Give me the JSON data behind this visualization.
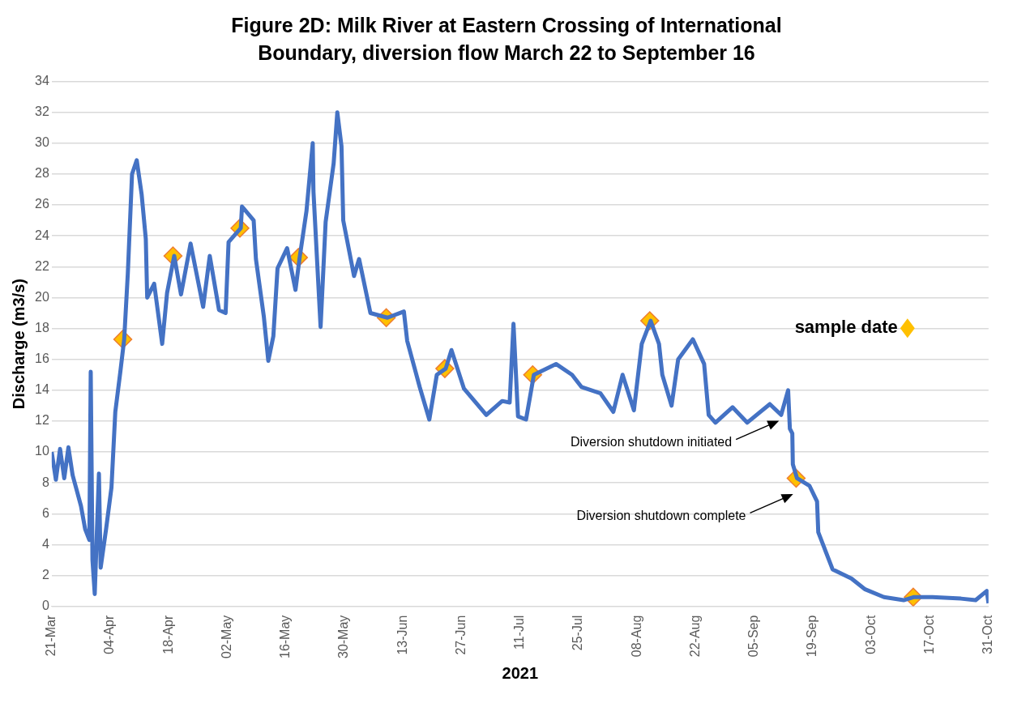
{
  "chart_data": {
    "type": "line",
    "title": "Figure 2D: Milk River at Eastern Crossing of International Boundary, diversion flow March 22 to September 16",
    "xlabel": "2021",
    "ylabel": "Discharge (m3/s)",
    "xlim": [
      "2021-03-21",
      "2021-10-31"
    ],
    "xticks": [
      {
        "value": "2021-03-21",
        "label": "21-Mar"
      },
      {
        "value": "2021-04-04",
        "label": "04-Apr"
      },
      {
        "value": "2021-04-18",
        "label": "18-Apr"
      },
      {
        "value": "2021-05-02",
        "label": "02-May"
      },
      {
        "value": "2021-05-16",
        "label": "16-May"
      },
      {
        "value": "2021-05-30",
        "label": "30-May"
      },
      {
        "value": "2021-06-13",
        "label": "13-Jun"
      },
      {
        "value": "2021-06-27",
        "label": "27-Jun"
      },
      {
        "value": "2021-07-11",
        "label": "11-Jul"
      },
      {
        "value": "2021-07-25",
        "label": "25-Jul"
      },
      {
        "value": "2021-08-08",
        "label": "08-Aug"
      },
      {
        "value": "2021-08-22",
        "label": "22-Aug"
      },
      {
        "value": "2021-09-05",
        "label": "05-Sep"
      },
      {
        "value": "2021-09-19",
        "label": "19-Sep"
      },
      {
        "value": "2021-10-03",
        "label": "03-Oct"
      },
      {
        "value": "2021-10-17",
        "label": "17-Oct"
      },
      {
        "value": "2021-10-31",
        "label": "31-Oct"
      }
    ],
    "ylim": [
      0,
      34
    ],
    "yticks": [
      0,
      2,
      4,
      6,
      8,
      10,
      12,
      14,
      16,
      18,
      20,
      22,
      24,
      26,
      28,
      30,
      32,
      34
    ],
    "grid": "y",
    "legend": "top right",
    "annotations": [
      "Diversion shutdown initiated",
      "Diversion shutdown complete"
    ],
    "series": [
      {
        "color": "#4472c4",
        "marker": "none",
        "x": [
          "2021-03-21",
          "2021-03-22",
          "2021-03-23",
          "2021-03-24",
          "2021-03-25",
          "2021-03-26",
          "2021-03-27",
          "2021-03-28",
          "2021-03-29",
          "2021-03-30T00:00",
          "2021-03-30T08:00",
          "2021-03-30T18:00",
          "2021-03-31T07:00",
          "2021-04-01T07:00",
          "2021-04-01T17:00",
          "2021-04-03T00:00",
          "2021-04-04T07:00",
          "2021-04-05T05:00",
          "2021-04-06T10:00",
          "2021-04-07T08:00",
          "2021-04-08T05:00",
          "2021-04-09T05:00",
          "2021-04-10T08:00",
          "2021-04-11T12:00",
          "2021-04-12T12:00",
          "2021-04-12T20:00",
          "2021-04-14T12:00",
          "2021-04-16T10:00",
          "2021-04-17T14:00",
          "2021-04-19T07:00",
          "2021-04-20T22:00",
          "2021-04-23T05:00",
          "2021-04-26T05:00",
          "2021-04-27T19:00",
          "2021-04-30T00:00",
          "2021-05-01T14:00",
          "2021-05-02T07:00",
          "2021-05-05T05:00",
          "2021-05-05T12:00",
          "2021-05-08T07:00",
          "2021-05-08T20:00",
          "2021-05-10T17:00",
          "2021-05-11T19:00",
          "2021-05-13T00:00",
          "2021-05-14T00:00",
          "2021-05-16T07:00",
          "2021-05-18T07:00",
          "2021-05-19T07:00",
          "2021-05-20T22:00",
          "2021-05-22T10:00",
          "2021-05-22T14:00",
          "2021-05-24T07:00",
          "2021-05-25T12:00",
          "2021-05-27T10:00",
          "2021-05-28T07:00",
          "2021-05-29T07:00",
          "2021-05-29T17:00",
          "2021-06-01T07:00",
          "2021-06-02T12:00",
          "2021-06-05T05:00",
          "2021-06-09T07:00",
          "2021-06-13T05:00",
          "2021-06-14T00:00",
          "2021-06-17T00:00",
          "2021-06-19T07:00",
          "2021-06-21T02:00",
          "2021-06-23T05:00",
          "2021-06-24T14:00",
          "2021-06-27T14:00",
          "2021-07-02T22:00",
          "2021-07-06T17:00",
          "2021-07-08T12:00",
          "2021-07-09T10:00",
          "2021-07-10T12:00",
          "2021-07-12T10:00",
          "2021-07-14T07:00",
          "2021-07-19T14:00",
          "2021-07-23T10:00",
          "2021-07-25T17:00",
          "2021-07-30T05:00",
          "2021-08-02T07:00",
          "2021-08-04T12:00",
          "2021-08-07T05:00",
          "2021-08-09T02:00",
          "2021-08-11T05:00",
          "2021-08-13T05:00",
          "2021-08-14T00:00",
          "2021-08-16T05:00",
          "2021-08-17T19:00",
          "2021-08-21T07:00",
          "2021-08-24T00:00",
          "2021-08-25T02:00",
          "2021-08-26T17:00",
          "2021-08-30T19:00",
          "2021-09-03T07:00",
          "2021-09-08T17:00",
          "2021-09-11T10:00",
          "2021-09-13T02:00",
          "2021-09-13T12:00",
          "2021-09-14T02:00",
          "2021-09-14T05:00",
          "2021-09-15T05:00",
          "2021-09-18T05:00",
          "2021-09-20T00:00",
          "2021-09-20T07:00",
          "2021-09-21T17:00",
          "2021-09-23T17:00",
          "2021-09-28T05:00",
          "2021-10-01T12:00",
          "2021-10-06T00:00",
          "2021-10-10T17:00",
          "2021-10-13T05:00",
          "2021-10-17T14:00",
          "2021-10-24T10:00",
          "2021-10-27T22:00",
          "2021-10-30T14:00",
          "2021-10-31T00:00"
        ],
        "values": [
          10,
          8.2,
          10.2,
          8.3,
          10.3,
          8.5,
          7.5,
          6.5,
          5,
          4.3,
          15.2,
          3,
          0.8,
          8.6,
          2.5,
          5,
          7.7,
          12.6,
          15.2,
          17.3,
          21.6,
          28,
          28.9,
          26.7,
          23.8,
          20,
          20.9,
          17,
          20.3,
          22.7,
          20.2,
          23.5,
          19.4,
          22.7,
          19.2,
          19,
          23.6,
          24.5,
          25.9,
          25,
          22.5,
          18.8,
          15.9,
          17.5,
          21.9,
          23.2,
          20.5,
          22.6,
          25.6,
          30,
          26.9,
          18.1,
          24.9,
          28.7,
          32,
          29.8,
          25,
          21.4,
          22.5,
          19,
          18.7,
          19.1,
          17.2,
          14.2,
          12.1,
          15,
          15.4,
          16.6,
          14.1,
          12.4,
          13.3,
          13.2,
          18.3,
          12.3,
          12.1,
          15,
          15.7,
          15,
          14.2,
          13.8,
          12.6,
          15,
          12.7,
          17,
          18.5,
          17,
          15,
          13,
          16,
          17.3,
          15.7,
          12.4,
          11.9,
          12.9,
          11.9,
          13.1,
          12.4,
          14,
          11.5,
          11.2,
          9.2,
          8.3,
          7.8,
          6.8,
          4.8,
          3.8,
          2.4,
          1.8,
          1.1,
          0.6,
          0.4,
          0.6,
          0.6,
          0.5,
          0.4,
          1,
          0.2
        ]
      },
      {
        "type": "scatter",
        "name": "sample date",
        "color": "#ffc000",
        "marker": "diamond",
        "x": [
          "2021-04-07",
          "2021-04-19",
          "2021-05-05",
          "2021-05-19",
          "2021-06-09",
          "2021-06-23",
          "2021-07-14",
          "2021-08-11",
          "2021-09-15",
          "2021-10-13"
        ],
        "values": [
          17.3,
          22.7,
          24.5,
          22.6,
          18.7,
          15.4,
          15,
          18.5,
          8.3,
          0.6
        ]
      }
    ]
  }
}
